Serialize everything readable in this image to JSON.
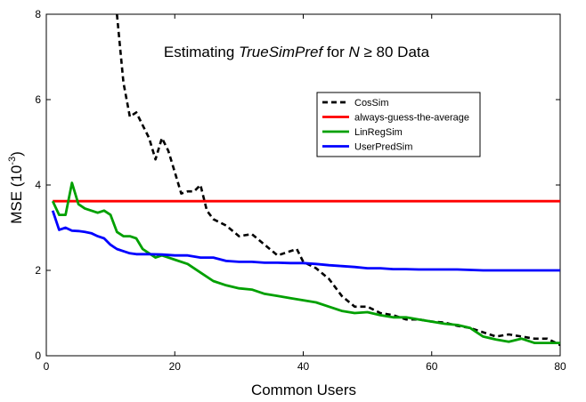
{
  "chart_data": {
    "type": "line",
    "title_parts": {
      "prefix": "Estimating ",
      "italic": "TrueSimPref",
      "mid": " for ",
      "var": "N",
      "cond": " ≥ 80",
      "suffix": " Data"
    },
    "xlabel": "Common Users",
    "ylabel": "MSE",
    "ylabel_unit_base": "10",
    "ylabel_unit_exp": "-3",
    "xlim": [
      0,
      80
    ],
    "ylim": [
      0,
      8
    ],
    "xticks": [
      0,
      20,
      40,
      60,
      80
    ],
    "yticks": [
      0,
      2,
      4,
      6,
      8
    ],
    "legend_position": "upper-right",
    "series": [
      {
        "name": "CosSim",
        "color": "#000000",
        "style": "dashed",
        "x": [
          11,
          12,
          13,
          14,
          15,
          16,
          17,
          18,
          19,
          20,
          21,
          22,
          23,
          24,
          25,
          26,
          28,
          30,
          32,
          34,
          36,
          38,
          39,
          40,
          42,
          44,
          46,
          48,
          50,
          52,
          54,
          56,
          58,
          60,
          62,
          64,
          66,
          68,
          70,
          72,
          74,
          76,
          78,
          80
        ],
        "y": [
          8.0,
          6.4,
          5.6,
          5.7,
          5.4,
          5.1,
          4.6,
          5.1,
          4.8,
          4.3,
          3.8,
          3.85,
          3.85,
          4.0,
          3.4,
          3.2,
          3.05,
          2.8,
          2.85,
          2.6,
          2.35,
          2.45,
          2.5,
          2.2,
          2.05,
          1.8,
          1.4,
          1.15,
          1.15,
          1.0,
          0.95,
          0.85,
          0.85,
          0.8,
          0.78,
          0.7,
          0.65,
          0.55,
          0.45,
          0.5,
          0.45,
          0.4,
          0.4,
          0.25
        ]
      },
      {
        "name": "always-guess-the-average",
        "color": "#ff0000",
        "style": "solid",
        "x": [
          1,
          80
        ],
        "y": [
          3.62,
          3.62
        ]
      },
      {
        "name": "LinRegSim",
        "color": "#00a000",
        "style": "solid",
        "x": [
          1,
          2,
          3,
          4,
          5,
          6,
          7,
          8,
          9,
          10,
          11,
          12,
          13,
          14,
          15,
          16,
          17,
          18,
          19,
          20,
          22,
          24,
          26,
          28,
          30,
          32,
          34,
          36,
          38,
          40,
          42,
          44,
          46,
          48,
          50,
          52,
          54,
          56,
          58,
          60,
          62,
          64,
          66,
          68,
          70,
          72,
          74,
          76,
          78,
          80
        ],
        "y": [
          3.62,
          3.3,
          3.3,
          4.05,
          3.55,
          3.45,
          3.4,
          3.35,
          3.4,
          3.3,
          2.9,
          2.8,
          2.8,
          2.75,
          2.5,
          2.4,
          2.3,
          2.35,
          2.3,
          2.25,
          2.15,
          1.95,
          1.75,
          1.65,
          1.58,
          1.55,
          1.45,
          1.4,
          1.35,
          1.3,
          1.25,
          1.15,
          1.05,
          1.0,
          1.02,
          0.95,
          0.9,
          0.9,
          0.85,
          0.8,
          0.75,
          0.72,
          0.65,
          0.45,
          0.38,
          0.33,
          0.4,
          0.3,
          0.3,
          0.3
        ]
      },
      {
        "name": "UserPredSim",
        "color": "#0000ff",
        "style": "solid",
        "x": [
          1,
          2,
          3,
          4,
          5,
          6,
          7,
          8,
          9,
          10,
          11,
          12,
          13,
          14,
          16,
          18,
          20,
          22,
          24,
          26,
          28,
          30,
          32,
          34,
          36,
          38,
          40,
          42,
          44,
          46,
          48,
          50,
          52,
          54,
          56,
          58,
          60,
          62,
          64,
          66,
          68,
          70,
          72,
          74,
          76,
          78,
          80
        ],
        "y": [
          3.4,
          2.95,
          3.0,
          2.93,
          2.92,
          2.9,
          2.87,
          2.8,
          2.75,
          2.6,
          2.5,
          2.45,
          2.4,
          2.38,
          2.38,
          2.37,
          2.35,
          2.35,
          2.3,
          2.3,
          2.22,
          2.2,
          2.2,
          2.18,
          2.18,
          2.17,
          2.17,
          2.15,
          2.12,
          2.1,
          2.08,
          2.05,
          2.05,
          2.03,
          2.03,
          2.02,
          2.02,
          2.02,
          2.02,
          2.01,
          2.0,
          2.0,
          2.0,
          2.0,
          2.0,
          2.0,
          2.0
        ]
      }
    ]
  }
}
